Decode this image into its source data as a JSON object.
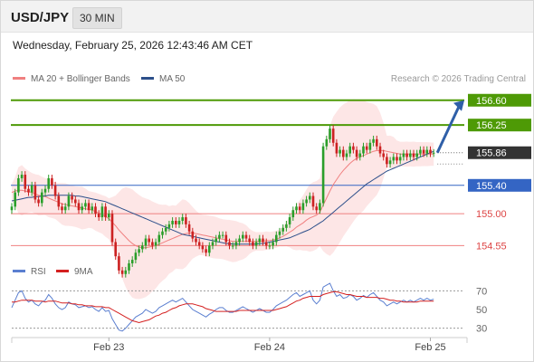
{
  "header": {
    "symbol": "USD/JPY",
    "timeframe": "30 MIN",
    "timestamp": "Wednesday, February 25, 2026 12:43:46 AM CET"
  },
  "colors": {
    "up": "#2a9e2a",
    "down": "#cc2222",
    "ma20": "#f08080",
    "bollinger_fill": "#fde0e0",
    "ma50": "#2c4f8a",
    "target": "#4e9a06",
    "current": "#333333",
    "pivot": "#3465c4",
    "support": "#f08080",
    "arrow": "#2f5fa8",
    "rsi": "#5b7fd0",
    "rsi_ma": "#d42020"
  },
  "chart_data": [
    {
      "type": "candlestick",
      "title": "",
      "credit": "Research © 2026 Trading Central",
      "legend": [
        {
          "label": "MA 20 + Bollinger Bands",
          "color": "#f08080"
        },
        {
          "label": "MA 50",
          "color": "#2c4f8a"
        }
      ],
      "legend_position": "top-left",
      "ylim": [
        154.3,
        156.75
      ],
      "x_ticks": [
        {
          "label": "Feb 23",
          "index": 29
        },
        {
          "label": "Feb 24",
          "index": 77
        },
        {
          "label": "Feb 25",
          "index": 125
        }
      ],
      "levels": [
        {
          "value": 156.6,
          "label": "156.60",
          "kind": "target"
        },
        {
          "value": 156.25,
          "label": "156.25",
          "kind": "target"
        },
        {
          "value": 155.86,
          "label": "155.86",
          "kind": "current"
        },
        {
          "value": 155.4,
          "label": "155.40",
          "kind": "pivot"
        },
        {
          "value": 155.0,
          "label": "155.00",
          "kind": "support"
        },
        {
          "value": 154.55,
          "label": "154.55",
          "kind": "support"
        }
      ],
      "closes": [
        155.1,
        155.3,
        155.5,
        155.55,
        155.35,
        155.3,
        155.4,
        155.2,
        155.15,
        155.3,
        155.35,
        155.5,
        155.4,
        155.25,
        155.1,
        155.05,
        155.1,
        155.25,
        155.2,
        155.15,
        155.05,
        155.1,
        155.15,
        155.05,
        155.1,
        155.0,
        154.95,
        155.1,
        154.95,
        155.0,
        154.6,
        154.4,
        154.2,
        154.15,
        154.2,
        154.3,
        154.35,
        154.45,
        154.5,
        154.55,
        154.65,
        154.6,
        154.55,
        154.6,
        154.7,
        154.75,
        154.8,
        154.85,
        154.9,
        154.85,
        154.9,
        154.95,
        154.85,
        154.75,
        154.65,
        154.6,
        154.55,
        154.5,
        154.45,
        154.55,
        154.6,
        154.65,
        154.7,
        154.7,
        154.6,
        154.55,
        154.55,
        154.6,
        154.65,
        154.7,
        154.65,
        154.6,
        154.55,
        154.6,
        154.65,
        154.6,
        154.55,
        154.55,
        154.6,
        154.7,
        154.75,
        154.8,
        154.85,
        154.95,
        155.05,
        155.1,
        155.05,
        155.15,
        155.2,
        155.25,
        155.1,
        155.05,
        155.15,
        155.95,
        156.05,
        156.2,
        156.0,
        155.85,
        155.9,
        155.8,
        155.85,
        155.95,
        155.9,
        155.8,
        155.85,
        155.95,
        155.9,
        156.0,
        156.05,
        155.95,
        155.85,
        155.8,
        155.7,
        155.75,
        155.8,
        155.75,
        155.8,
        155.85,
        155.8,
        155.85,
        155.8,
        155.85,
        155.9,
        155.85,
        155.9,
        155.85,
        155.86
      ],
      "ma20": [
        155.3,
        155.32,
        155.33,
        155.33,
        155.32,
        155.31,
        155.3,
        155.28,
        155.26,
        155.25,
        155.24,
        155.22,
        155.2,
        155.18,
        155.16,
        155.14,
        155.13,
        155.12,
        155.11,
        155.1,
        155.09,
        155.08,
        155.07,
        155.06,
        155.05,
        155.03,
        155.01,
        154.99,
        154.96,
        154.93,
        154.88,
        154.83,
        154.77,
        154.72,
        154.67,
        154.62,
        154.58,
        154.55,
        154.53,
        154.52,
        154.52,
        154.53,
        154.54,
        154.55,
        154.57,
        154.59,
        154.61,
        154.63,
        154.65,
        154.67,
        154.69,
        154.71,
        154.72,
        154.73,
        154.73,
        154.72,
        154.71,
        154.7,
        154.69,
        154.68,
        154.67,
        154.66,
        154.65,
        154.64,
        154.63,
        154.62,
        154.61,
        154.61,
        154.61,
        154.61,
        154.61,
        154.61,
        154.61,
        154.61,
        154.61,
        154.61,
        154.62,
        154.62,
        154.63,
        154.64,
        154.66,
        154.68,
        154.71,
        154.74,
        154.77,
        154.81,
        154.84,
        154.87,
        154.91,
        154.94,
        154.96,
        154.98,
        155.02,
        155.12,
        155.22,
        155.32,
        155.41,
        155.48,
        155.55,
        155.61,
        155.66,
        155.71,
        155.75,
        155.78,
        155.8,
        155.82,
        155.84,
        155.86,
        155.88,
        155.89,
        155.89,
        155.89,
        155.88,
        155.87,
        155.86,
        155.85,
        155.84,
        155.84,
        155.84,
        155.84,
        155.84,
        155.84,
        155.84,
        155.84,
        155.84,
        155.84,
        155.84
      ],
      "ma50": [
        155.18,
        155.19,
        155.2,
        155.21,
        155.22,
        155.23,
        155.23,
        155.24,
        155.24,
        155.25,
        155.25,
        155.26,
        155.26,
        155.26,
        155.26,
        155.26,
        155.26,
        155.26,
        155.26,
        155.25,
        155.25,
        155.24,
        155.23,
        155.22,
        155.21,
        155.2,
        155.19,
        155.18,
        155.17,
        155.15,
        155.13,
        155.11,
        155.09,
        155.07,
        155.05,
        155.03,
        155.01,
        154.99,
        154.97,
        154.95,
        154.93,
        154.91,
        154.89,
        154.87,
        154.85,
        154.83,
        154.81,
        154.79,
        154.77,
        154.75,
        154.73,
        154.71,
        154.7,
        154.69,
        154.68,
        154.67,
        154.66,
        154.65,
        154.64,
        154.63,
        154.62,
        154.61,
        154.6,
        154.59,
        154.58,
        154.58,
        154.57,
        154.57,
        154.57,
        154.57,
        154.57,
        154.57,
        154.57,
        154.57,
        154.58,
        154.58,
        154.59,
        154.6,
        154.61,
        154.62,
        154.63,
        154.64,
        154.65,
        154.66,
        154.68,
        154.7,
        154.72,
        154.74,
        154.76,
        154.78,
        154.81,
        154.84,
        154.87,
        154.9,
        154.94,
        154.98,
        155.02,
        155.06,
        155.1,
        155.14,
        155.18,
        155.22,
        155.26,
        155.3,
        155.34,
        155.38,
        155.42,
        155.45,
        155.48,
        155.51,
        155.54,
        155.57,
        155.6,
        155.62,
        155.64,
        155.66,
        155.68,
        155.7,
        155.72,
        155.74,
        155.76,
        155.78,
        155.8,
        155.82,
        155.84,
        155.86,
        155.88
      ]
    },
    {
      "type": "line",
      "title": "",
      "legend": [
        {
          "label": "RSI",
          "color": "#5b7fd0"
        },
        {
          "label": "9MA",
          "color": "#d42020"
        }
      ],
      "legend_position": "top-left",
      "ylim": [
        20,
        80
      ],
      "y_ticks": [
        70,
        50,
        30
      ],
      "series": [
        {
          "name": "RSI",
          "values": [
            52,
            60,
            68,
            70,
            62,
            58,
            60,
            56,
            54,
            58,
            60,
            66,
            62,
            56,
            52,
            50,
            52,
            58,
            56,
            55,
            52,
            53,
            54,
            52,
            53,
            50,
            48,
            52,
            48,
            49,
            40,
            34,
            28,
            27,
            30,
            34,
            38,
            42,
            44,
            46,
            50,
            48,
            46,
            48,
            52,
            54,
            56,
            58,
            60,
            58,
            60,
            62,
            58,
            54,
            50,
            48,
            46,
            44,
            42,
            45,
            47,
            50,
            52,
            52,
            49,
            47,
            47,
            49,
            51,
            53,
            51,
            49,
            47,
            49,
            51,
            49,
            47,
            47,
            50,
            54,
            56,
            58,
            60,
            63,
            66,
            68,
            64,
            66,
            68,
            70,
            60,
            56,
            60,
            74,
            76,
            78,
            70,
            64,
            66,
            62,
            63,
            66,
            64,
            60,
            62,
            65,
            63,
            66,
            68,
            64,
            60,
            58,
            54,
            56,
            58,
            56,
            58,
            60,
            58,
            60,
            58,
            60,
            62,
            60,
            62,
            60,
            61
          ]
        },
        {
          "name": "9MA",
          "values": [
            58,
            58,
            59,
            60,
            60,
            60,
            60,
            59,
            59,
            59,
            58,
            59,
            59,
            59,
            58,
            57,
            57,
            57,
            56,
            56,
            55,
            55,
            54,
            54,
            54,
            53,
            53,
            53,
            52,
            52,
            50,
            48,
            46,
            44,
            42,
            40,
            38,
            37,
            36,
            37,
            38,
            39,
            41,
            43,
            44,
            46,
            47,
            49,
            51,
            52,
            54,
            55,
            56,
            56,
            56,
            55,
            54,
            53,
            51,
            50,
            49,
            48,
            48,
            48,
            48,
            48,
            48,
            48,
            49,
            49,
            49,
            49,
            49,
            49,
            49,
            49,
            49,
            49,
            49,
            50,
            51,
            52,
            53,
            55,
            57,
            59,
            60,
            62,
            63,
            64,
            64,
            64,
            64,
            66,
            67,
            68,
            69,
            69,
            68,
            67,
            66,
            66,
            65,
            64,
            64,
            64,
            63,
            63,
            63,
            63,
            62,
            62,
            61,
            60,
            60,
            59,
            59,
            58,
            58,
            58,
            58,
            58,
            59,
            59,
            59,
            59,
            59
          ]
        }
      ]
    }
  ]
}
